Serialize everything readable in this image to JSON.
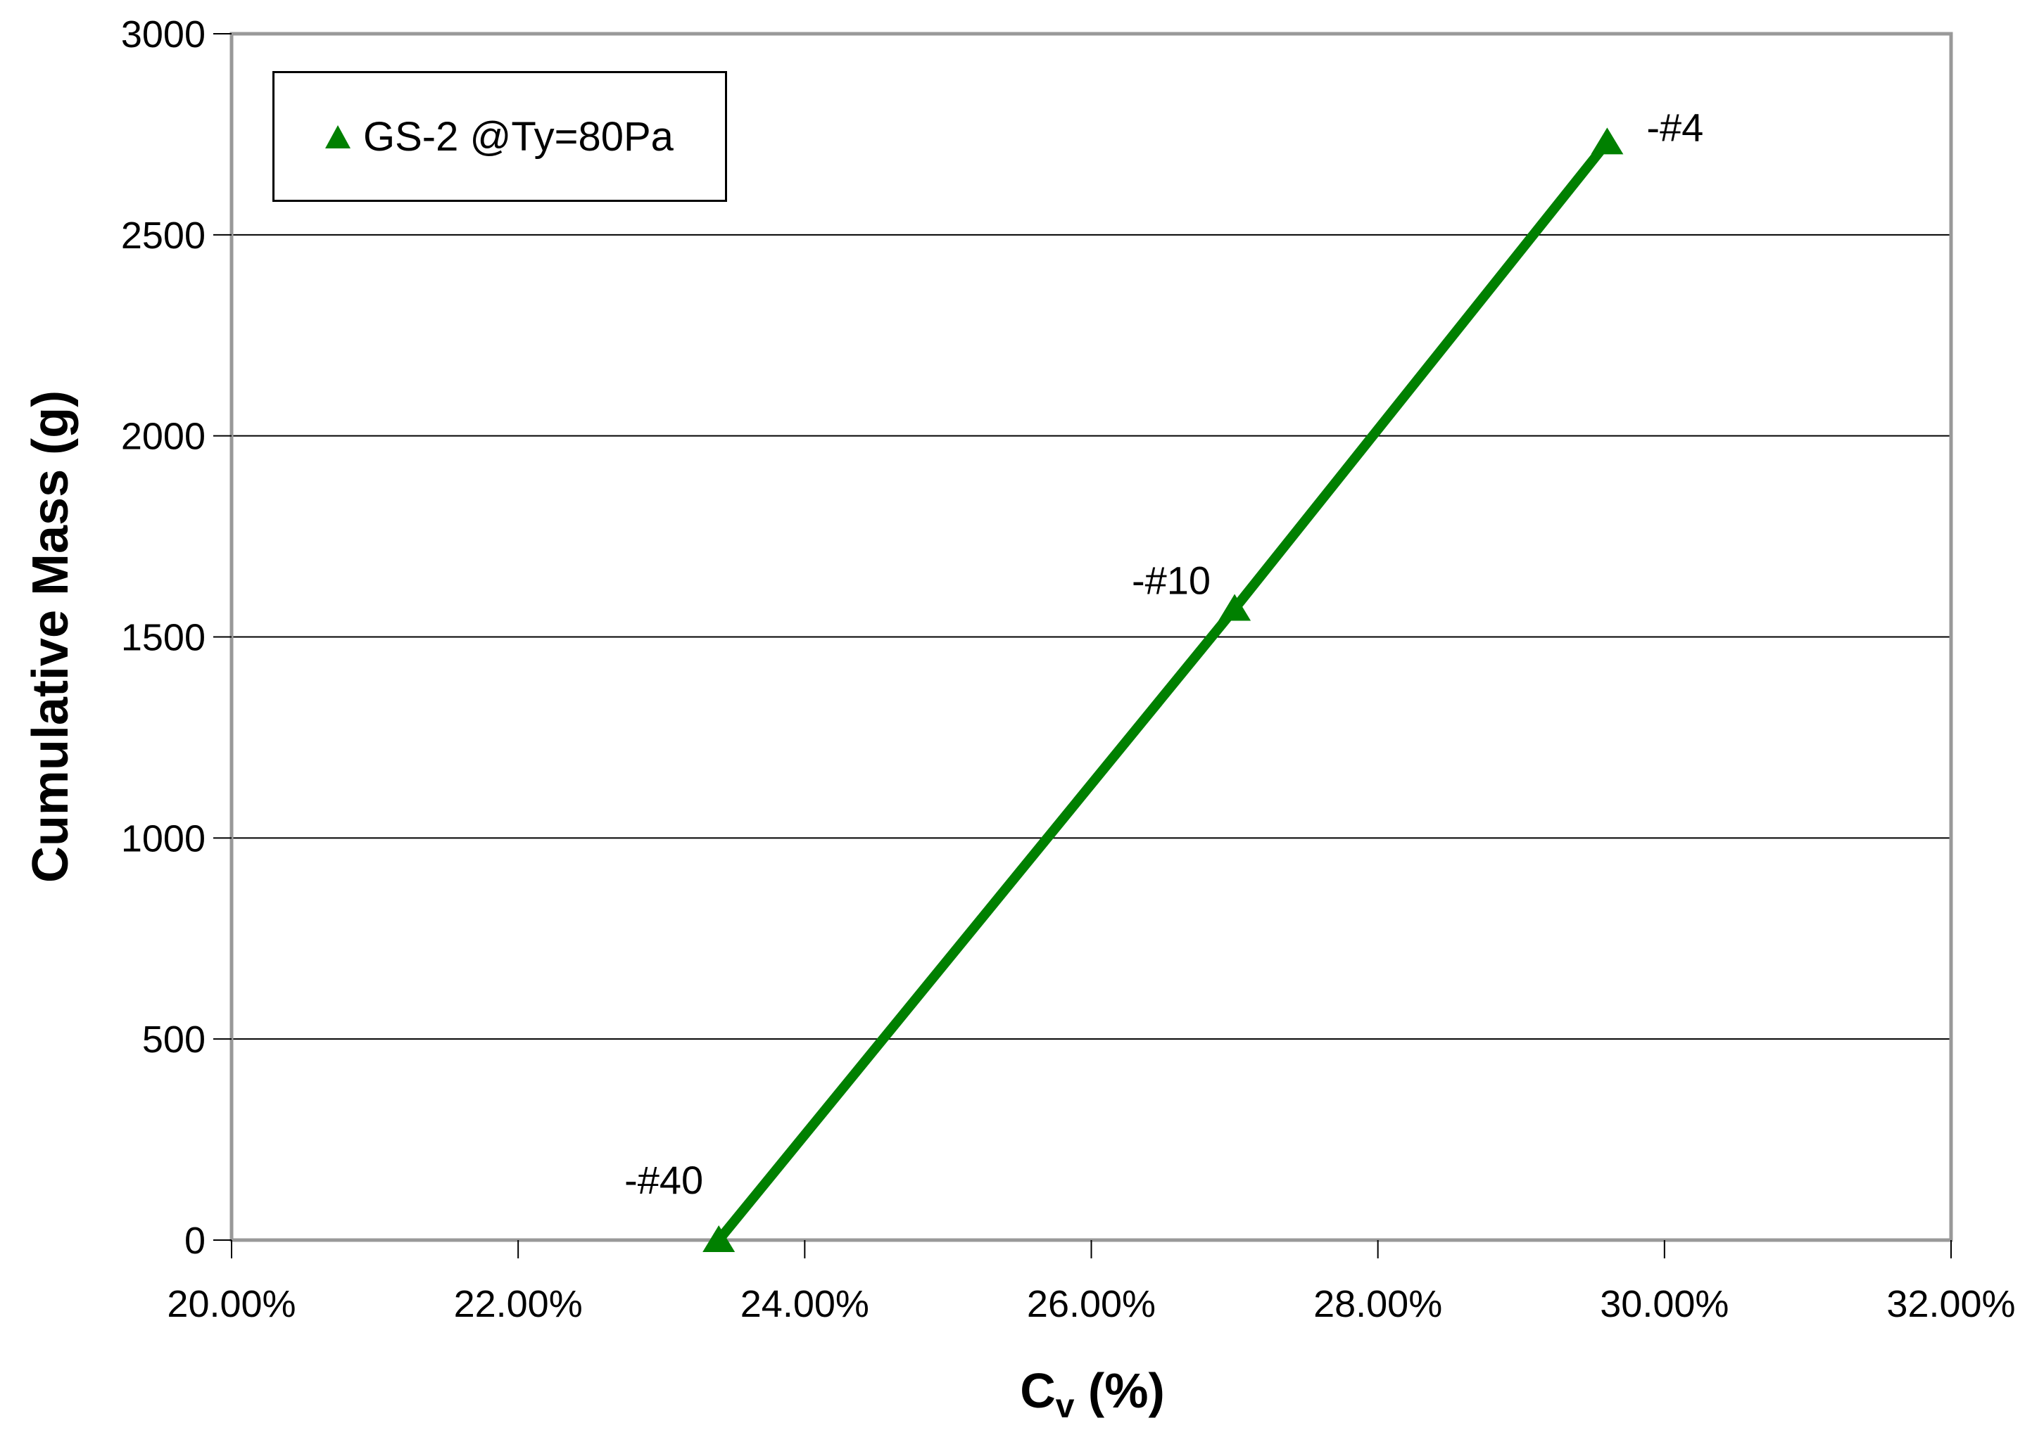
{
  "chart_data": {
    "type": "line",
    "title": "",
    "xlabel": {
      "main": "C",
      "sub": "v",
      "rest": " (%)"
    },
    "ylabel": "Cumulative Mass (g)",
    "xlim": [
      20,
      32
    ],
    "ylim": [
      0,
      3000
    ],
    "grid": "horizontal",
    "legend_position": "top-left",
    "x_ticks": [
      {
        "value": 20,
        "label": "20.00%"
      },
      {
        "value": 22,
        "label": "22.00%"
      },
      {
        "value": 24,
        "label": "24.00%"
      },
      {
        "value": 26,
        "label": "26.00%"
      },
      {
        "value": 28,
        "label": "28.00%"
      },
      {
        "value": 30,
        "label": "30.00%"
      },
      {
        "value": 32,
        "label": "32.00%"
      }
    ],
    "y_ticks": [
      {
        "value": 0,
        "label": "0"
      },
      {
        "value": 500,
        "label": "500"
      },
      {
        "value": 1000,
        "label": "1000"
      },
      {
        "value": 1500,
        "label": "1500"
      },
      {
        "value": 2000,
        "label": "2000"
      },
      {
        "value": 2500,
        "label": "2500"
      },
      {
        "value": 3000,
        "label": "3000"
      }
    ],
    "series": [
      {
        "name": "GS-2 @Ty=80Pa",
        "color": "#008000",
        "marker": "triangle-up",
        "points": [
          {
            "x": 23.4,
            "y": 0,
            "label": "-#40",
            "label_anchor": "end",
            "label_dx": -22,
            "label_dy": -66
          },
          {
            "x": 27.0,
            "y": 1570,
            "label": "-#10",
            "label_anchor": "end",
            "label_dx": -34,
            "label_dy": -21
          },
          {
            "x": 29.6,
            "y": 2730,
            "label": "-#4",
            "label_anchor": "start",
            "label_dx": 56,
            "label_dy": -2
          }
        ]
      }
    ]
  },
  "colors": {
    "series_green": "#008000",
    "gridline": "#000000",
    "plot_border": "#999999",
    "tick": "#000000",
    "text": "#000000",
    "background": "#ffffff"
  }
}
